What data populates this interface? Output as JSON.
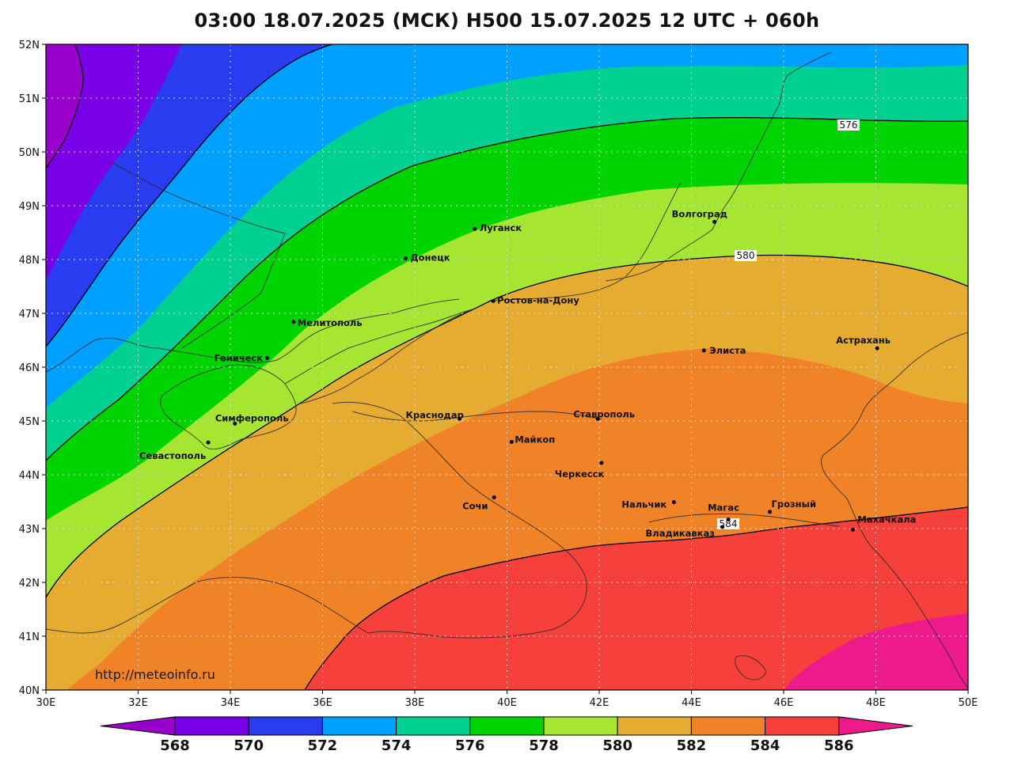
{
  "title": "03:00 18.07.2025 (МСК) H500  15.07.2025 12 UTC + 060h",
  "watermark": "http://meteoinfo.ru",
  "lat_ticks": [
    "52N",
    "51N",
    "50N",
    "49N",
    "48N",
    "47N",
    "46N",
    "45N",
    "44N",
    "43N",
    "42N",
    "41N",
    "40N"
  ],
  "lon_ticks": [
    "30E",
    "32E",
    "34E",
    "36E",
    "38E",
    "40E",
    "42E",
    "44E",
    "46E",
    "48E",
    "50E"
  ],
  "colorbar": {
    "labels": [
      "568",
      "570",
      "572",
      "574",
      "576",
      "578",
      "580",
      "582",
      "584",
      "586"
    ],
    "colors": [
      "#9a00cc",
      "#7a00e8",
      "#2a3cf0",
      "#00a0ff",
      "#00d090",
      "#00d400",
      "#a6e632",
      "#e6ac32",
      "#f08228",
      "#f5403c",
      "#ee1a8c"
    ]
  },
  "contour_labels": [
    "576",
    "580",
    "584"
  ],
  "cities": [
    {
      "name": "Волгоград",
      "lon": 44.5,
      "lat": 48.7
    },
    {
      "name": "Луганск",
      "lon": 39.3,
      "lat": 48.57
    },
    {
      "name": "Донецк",
      "lon": 37.8,
      "lat": 48.02
    },
    {
      "name": "Ростов-на-Дону",
      "lon": 39.7,
      "lat": 47.23
    },
    {
      "name": "Мелитополь",
      "lon": 35.37,
      "lat": 46.84
    },
    {
      "name": "Геническ",
      "lon": 34.8,
      "lat": 46.17
    },
    {
      "name": "Элиста",
      "lon": 44.27,
      "lat": 46.31
    },
    {
      "name": "Астрахань",
      "lon": 48.03,
      "lat": 46.35
    },
    {
      "name": "Симферополь",
      "lon": 34.1,
      "lat": 44.95
    },
    {
      "name": "Севастополь",
      "lon": 33.52,
      "lat": 44.6
    },
    {
      "name": "Краснодар",
      "lon": 38.97,
      "lat": 45.04
    },
    {
      "name": "Ставрополь",
      "lon": 41.97,
      "lat": 45.04
    },
    {
      "name": "Майкоп",
      "lon": 40.1,
      "lat": 44.61
    },
    {
      "name": "Черкесск",
      "lon": 42.05,
      "lat": 44.22
    },
    {
      "name": "Сочи",
      "lon": 39.72,
      "lat": 43.58
    },
    {
      "name": "Нальчик",
      "lon": 43.62,
      "lat": 43.49
    },
    {
      "name": "Магас",
      "lon": 44.8,
      "lat": 43.17
    },
    {
      "name": "Грозный",
      "lon": 45.7,
      "lat": 43.31
    },
    {
      "name": "Владикавказ",
      "lon": 44.67,
      "lat": 43.03
    },
    {
      "name": "Махачкала",
      "lon": 47.5,
      "lat": 42.98
    }
  ]
}
